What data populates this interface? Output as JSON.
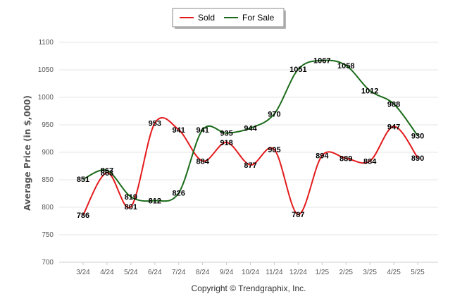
{
  "chart_data": {
    "type": "line",
    "categories": [
      "3/24",
      "4/24",
      "5/24",
      "6/24",
      "7/24",
      "8/24",
      "9/24",
      "10/24",
      "11/24",
      "12/24",
      "1/25",
      "2/25",
      "3/25",
      "4/25",
      "5/25"
    ],
    "series": [
      {
        "name": "Sold",
        "color": "#e31a1c",
        "values": [
          786,
          863,
          801,
          953,
          941,
          884,
          918,
          877,
          905,
          787,
          894,
          889,
          884,
          947,
          890
        ]
      },
      {
        "name": "For Sale",
        "color": "#1a6b1a",
        "values": [
          851,
          867,
          819,
          812,
          826,
          941,
          935,
          944,
          970,
          1051,
          1067,
          1058,
          1012,
          988,
          930
        ]
      }
    ],
    "ylabel": "Average Price (in $,000)",
    "xlabel": "",
    "ylim": [
      700,
      1100
    ],
    "yticks": [
      700,
      750,
      800,
      850,
      900,
      950,
      1000,
      1050,
      1100
    ],
    "grid": true,
    "legend": "top-center"
  },
  "legend": {
    "sold_label": "Sold",
    "for_sale_label": "For Sale"
  },
  "footer": {
    "copyright": "Copyright © Trendgraphix, Inc."
  }
}
